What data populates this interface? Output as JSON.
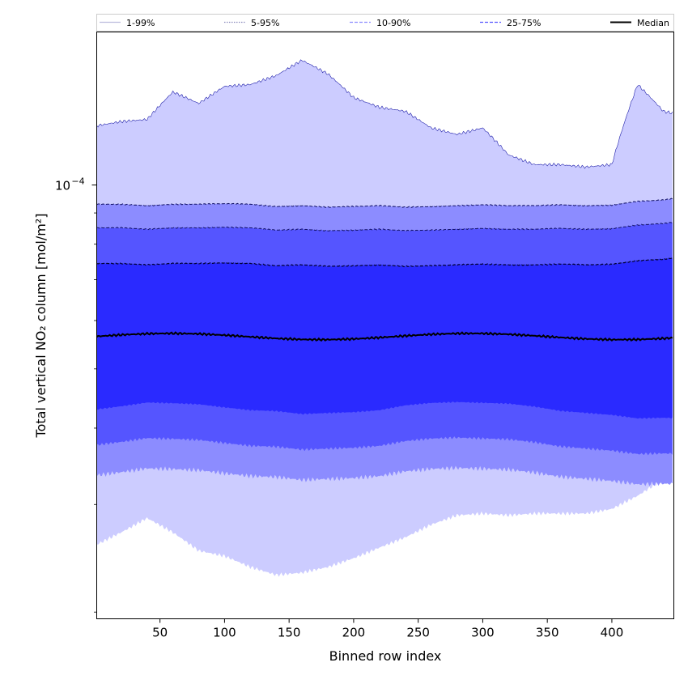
{
  "chart_data": {
    "type": "area",
    "xlabel": "Binned row index",
    "ylabel": "Total vertical NO₂ column [mol/m²]",
    "y_scale": "log",
    "xlim": [
      1,
      448
    ],
    "ylim": [
      1.95e-05,
      0.000178
    ],
    "x_ticks": [
      50,
      100,
      150,
      200,
      250,
      300,
      350,
      400
    ],
    "y_major_ticks": [
      {
        "value": 0.0001,
        "label": "10",
        "exponent": "−4"
      }
    ],
    "y_minor_ticks": [
      2e-05,
      3e-05,
      4e-05,
      5e-05,
      6e-05,
      7e-05,
      8e-05,
      9e-05
    ],
    "grid": false,
    "legend": {
      "placement": "top",
      "entries": [
        {
          "label": "1-99%",
          "color": "#ccccff",
          "style": "solid"
        },
        {
          "label": "5-95%",
          "color": "#8c8cff",
          "style": "dotted"
        },
        {
          "label": "10-90%",
          "color": "#5555ff",
          "style": "dashed"
        },
        {
          "label": "25-75%",
          "color": "#2a2aff",
          "style": "dashed"
        },
        {
          "label": "Median",
          "color": "#000000",
          "style": "solid"
        }
      ]
    },
    "x": [
      1,
      20,
      40,
      60,
      80,
      100,
      120,
      140,
      160,
      180,
      200,
      220,
      240,
      260,
      280,
      300,
      320,
      340,
      360,
      380,
      400,
      420,
      440,
      448
    ],
    "bands": [
      {
        "name": "1-99%",
        "color": "#ccccff",
        "upper": [
          0.000125,
          0.000127,
          0.000128,
          0.000142,
          0.000136,
          0.000145,
          0.000146,
          0.000151,
          0.00016,
          0.000152,
          0.000139,
          0.000134,
          0.000132,
          0.000124,
          0.000121,
          0.000124,
          0.000112,
          0.000108,
          0.000108,
          0.000107,
          0.000108,
          0.000146,
          0.000132,
          0.000131
        ],
        "lower": [
          2.58e-05,
          2.7e-05,
          2.85e-05,
          2.7e-05,
          2.52e-05,
          2.47e-05,
          2.37e-05,
          2.3e-05,
          2.32e-05,
          2.37e-05,
          2.45e-05,
          2.55e-05,
          2.65e-05,
          2.78e-05,
          2.88e-05,
          2.9e-05,
          2.88e-05,
          2.9e-05,
          2.9e-05,
          2.9e-05,
          2.95e-05,
          3.1e-05,
          3.3e-05,
          3.45e-05
        ]
      },
      {
        "name": "5-95%",
        "color": "#8c8cff",
        "upper": [
          9.3e-05,
          9.3e-05,
          9.25e-05,
          9.3e-05,
          9.3e-05,
          9.32e-05,
          9.3e-05,
          9.22e-05,
          9.25e-05,
          9.2e-05,
          9.22e-05,
          9.25e-05,
          9.2e-05,
          9.22e-05,
          9.25e-05,
          9.28e-05,
          9.25e-05,
          9.25e-05,
          9.28e-05,
          9.25e-05,
          9.27e-05,
          9.4e-05,
          9.45e-05,
          9.5e-05
        ]
      }
    ]
  }
}
